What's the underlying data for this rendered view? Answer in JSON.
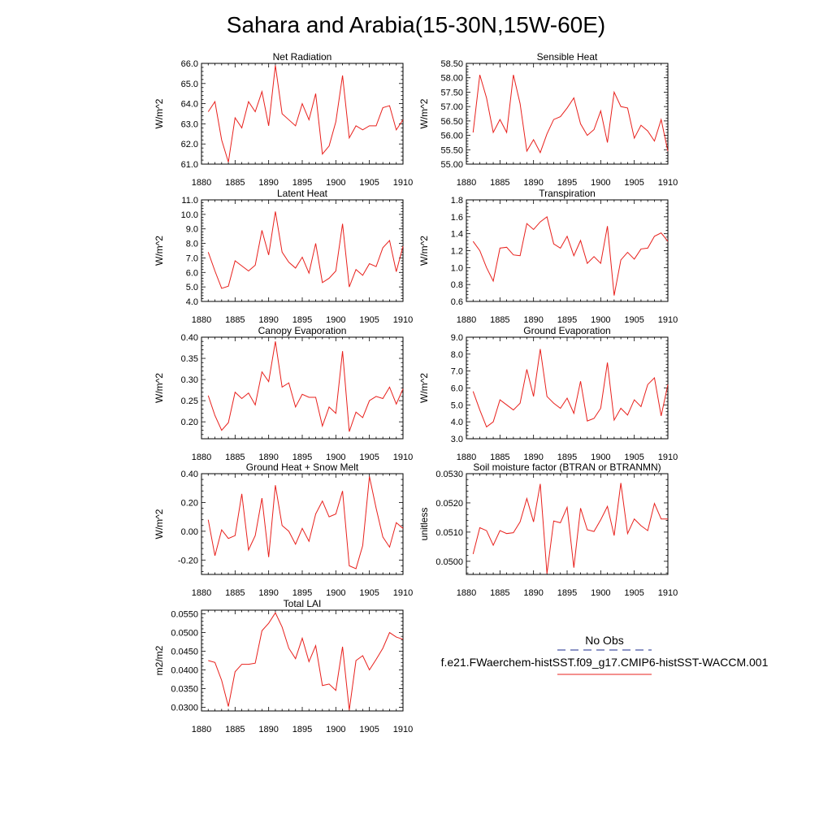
{
  "figure_title": "Sahara and Arabia(15-30N,15W-60E)",
  "legend": {
    "entries": [
      {
        "label": "No Obs",
        "color": "#1a2a8c",
        "dash": true
      },
      {
        "label": "f.e21.FWaerchem-histSST.f09_g17.CMIP6-histSST-WACCM.001",
        "color": "#e8201c",
        "dash": false
      }
    ]
  },
  "chart_data": [
    {
      "type": "line",
      "title": "Net Radiation",
      "ylabel": "W/m^2",
      "xlim": [
        1880,
        1910
      ],
      "ylim": [
        61.0,
        66.0
      ],
      "xticks": [
        1880,
        1885,
        1890,
        1895,
        1900,
        1905,
        1910
      ],
      "yticks": [
        61.0,
        62.0,
        63.0,
        64.0,
        65.0,
        66.0
      ],
      "ytick_labels": [
        "61.0",
        "62.0",
        "63.0",
        "64.0",
        "65.0",
        "66.0"
      ],
      "x": [
        1881,
        1882,
        1883,
        1884,
        1885,
        1886,
        1887,
        1888,
        1889,
        1890,
        1891,
        1892,
        1893,
        1894,
        1895,
        1896,
        1897,
        1898,
        1899,
        1900,
        1901,
        1902,
        1903,
        1904,
        1905,
        1906,
        1907,
        1908,
        1909,
        1910
      ],
      "series": [
        {
          "color": "#e8201c",
          "values": [
            63.6,
            64.1,
            62.2,
            61.1,
            63.3,
            62.8,
            64.1,
            63.6,
            64.6,
            62.9,
            65.9,
            63.5,
            63.2,
            62.9,
            64.0,
            63.2,
            64.5,
            61.5,
            61.9,
            63.1,
            65.4,
            62.3,
            62.9,
            62.7,
            62.9,
            62.9,
            63.8,
            63.9,
            62.7,
            63.2
          ]
        }
      ]
    },
    {
      "type": "line",
      "title": "Sensible Heat",
      "ylabel": "W/m^2",
      "xlim": [
        1880,
        1910
      ],
      "ylim": [
        55.0,
        58.5
      ],
      "xticks": [
        1880,
        1885,
        1890,
        1895,
        1900,
        1905,
        1910
      ],
      "yticks": [
        55.0,
        55.5,
        56.0,
        56.5,
        57.0,
        57.5,
        58.0,
        58.5
      ],
      "ytick_labels": [
        "55.00",
        "55.50",
        "56.00",
        "56.50",
        "57.00",
        "57.50",
        "58.00",
        "58.50"
      ],
      "x": [
        1881,
        1882,
        1883,
        1884,
        1885,
        1886,
        1887,
        1888,
        1889,
        1890,
        1891,
        1892,
        1893,
        1894,
        1895,
        1896,
        1897,
        1898,
        1899,
        1900,
        1901,
        1902,
        1903,
        1904,
        1905,
        1906,
        1907,
        1908,
        1909,
        1910
      ],
      "series": [
        {
          "color": "#e8201c",
          "values": [
            56.1,
            58.1,
            57.3,
            56.1,
            56.55,
            56.1,
            58.1,
            57.1,
            55.45,
            55.85,
            55.4,
            56.05,
            56.55,
            56.65,
            56.95,
            57.3,
            56.4,
            56.0,
            56.2,
            56.85,
            55.75,
            57.5,
            57.0,
            56.95,
            55.9,
            56.35,
            56.15,
            55.8,
            56.55,
            55.45
          ]
        }
      ]
    },
    {
      "type": "line",
      "title": "Latent Heat",
      "ylabel": "W/m^2",
      "xlim": [
        1880,
        1910
      ],
      "ylim": [
        4.0,
        11.0
      ],
      "xticks": [
        1880,
        1885,
        1890,
        1895,
        1900,
        1905,
        1910
      ],
      "yticks": [
        4.0,
        5.0,
        6.0,
        7.0,
        8.0,
        9.0,
        10.0,
        11.0
      ],
      "ytick_labels": [
        "4.0",
        "5.0",
        "6.0",
        "7.0",
        "8.0",
        "9.0",
        "10.0",
        "11.0"
      ],
      "x": [
        1881,
        1882,
        1883,
        1884,
        1885,
        1886,
        1887,
        1888,
        1889,
        1890,
        1891,
        1892,
        1893,
        1894,
        1895,
        1896,
        1897,
        1898,
        1899,
        1900,
        1901,
        1902,
        1903,
        1904,
        1905,
        1906,
        1907,
        1908,
        1909,
        1910
      ],
      "series": [
        {
          "color": "#e8201c",
          "values": [
            7.4,
            6.1,
            4.9,
            5.05,
            6.8,
            6.45,
            6.1,
            6.5,
            8.9,
            7.2,
            10.2,
            7.4,
            6.7,
            6.3,
            7.05,
            5.95,
            8.0,
            5.3,
            5.6,
            6.1,
            9.35,
            5.0,
            6.2,
            5.8,
            6.6,
            6.4,
            7.7,
            8.2,
            6.05,
            7.8
          ]
        }
      ]
    },
    {
      "type": "line",
      "title": "Transpiration",
      "ylabel": "W/m^2",
      "xlim": [
        1880,
        1910
      ],
      "ylim": [
        0.6,
        1.8
      ],
      "xticks": [
        1880,
        1885,
        1890,
        1895,
        1900,
        1905,
        1910
      ],
      "yticks": [
        0.6,
        0.8,
        1.0,
        1.2,
        1.4,
        1.6,
        1.8
      ],
      "ytick_labels": [
        "0.6",
        "0.8",
        "1.0",
        "1.2",
        "1.4",
        "1.6",
        "1.8"
      ],
      "x": [
        1881,
        1882,
        1883,
        1884,
        1885,
        1886,
        1887,
        1888,
        1889,
        1890,
        1891,
        1892,
        1893,
        1894,
        1895,
        1896,
        1897,
        1898,
        1899,
        1900,
        1901,
        1902,
        1903,
        1904,
        1905,
        1906,
        1907,
        1908,
        1909,
        1910
      ],
      "series": [
        {
          "color": "#e8201c",
          "values": [
            1.31,
            1.2,
            1.0,
            0.84,
            1.23,
            1.24,
            1.15,
            1.14,
            1.52,
            1.45,
            1.54,
            1.6,
            1.28,
            1.23,
            1.37,
            1.14,
            1.32,
            1.05,
            1.13,
            1.05,
            1.49,
            0.67,
            1.09,
            1.18,
            1.1,
            1.22,
            1.23,
            1.37,
            1.41,
            1.31
          ]
        }
      ]
    },
    {
      "type": "line",
      "title": "Canopy Evaporation",
      "ylabel": "W/m^2",
      "xlim": [
        1880,
        1910
      ],
      "ylim": [
        0.16,
        0.4
      ],
      "xticks": [
        1880,
        1885,
        1890,
        1895,
        1900,
        1905,
        1910
      ],
      "yticks": [
        0.2,
        0.25,
        0.3,
        0.35,
        0.4
      ],
      "ytick_labels": [
        "0.20",
        "0.25",
        "0.30",
        "0.35",
        "0.40"
      ],
      "x": [
        1881,
        1882,
        1883,
        1884,
        1885,
        1886,
        1887,
        1888,
        1889,
        1890,
        1891,
        1892,
        1893,
        1894,
        1895,
        1896,
        1897,
        1898,
        1899,
        1900,
        1901,
        1902,
        1903,
        1904,
        1905,
        1906,
        1907,
        1908,
        1909,
        1910
      ],
      "series": [
        {
          "color": "#e8201c",
          "values": [
            0.262,
            0.215,
            0.18,
            0.198,
            0.27,
            0.255,
            0.268,
            0.24,
            0.318,
            0.295,
            0.39,
            0.282,
            0.292,
            0.235,
            0.265,
            0.258,
            0.258,
            0.19,
            0.235,
            0.22,
            0.367,
            0.177,
            0.223,
            0.21,
            0.25,
            0.26,
            0.255,
            0.282,
            0.242,
            0.278
          ]
        }
      ]
    },
    {
      "type": "line",
      "title": "Ground Evaporation",
      "ylabel": "W/m^2",
      "xlim": [
        1880,
        1910
      ],
      "ylim": [
        3.0,
        9.0
      ],
      "xticks": [
        1880,
        1885,
        1890,
        1895,
        1900,
        1905,
        1910
      ],
      "yticks": [
        3.0,
        4.0,
        5.0,
        6.0,
        7.0,
        8.0,
        9.0
      ],
      "ytick_labels": [
        "3.0",
        "4.0",
        "5.0",
        "6.0",
        "7.0",
        "8.0",
        "9.0"
      ],
      "x": [
        1881,
        1882,
        1883,
        1884,
        1885,
        1886,
        1887,
        1888,
        1889,
        1890,
        1891,
        1892,
        1893,
        1894,
        1895,
        1896,
        1897,
        1898,
        1899,
        1900,
        1901,
        1902,
        1903,
        1904,
        1905,
        1906,
        1907,
        1908,
        1909,
        1910
      ],
      "series": [
        {
          "color": "#e8201c",
          "values": [
            5.8,
            4.7,
            3.7,
            4.0,
            5.3,
            5.0,
            4.7,
            5.1,
            7.1,
            5.5,
            8.3,
            5.5,
            5.1,
            4.8,
            5.4,
            4.5,
            6.4,
            4.05,
            4.2,
            4.8,
            7.5,
            4.1,
            4.8,
            4.4,
            5.3,
            4.9,
            6.2,
            6.6,
            4.35,
            6.2
          ]
        }
      ]
    },
    {
      "type": "line",
      "title": "Ground Heat + Snow Melt",
      "ylabel": "W/m^2",
      "xlim": [
        1880,
        1910
      ],
      "ylim": [
        -0.3,
        0.4
      ],
      "xticks": [
        1880,
        1885,
        1890,
        1895,
        1900,
        1905,
        1910
      ],
      "yticks": [
        -0.2,
        0.0,
        0.2,
        0.4
      ],
      "ytick_labels": [
        "-0.20",
        "0.00",
        "0.20",
        "0.40"
      ],
      "x": [
        1881,
        1882,
        1883,
        1884,
        1885,
        1886,
        1887,
        1888,
        1889,
        1890,
        1891,
        1892,
        1893,
        1894,
        1895,
        1896,
        1897,
        1898,
        1899,
        1900,
        1901,
        1902,
        1903,
        1904,
        1905,
        1906,
        1907,
        1908,
        1909,
        1910
      ],
      "series": [
        {
          "color": "#e8201c",
          "values": [
            0.08,
            -0.17,
            0.01,
            -0.05,
            -0.03,
            0.26,
            -0.13,
            -0.03,
            0.23,
            -0.18,
            0.32,
            0.04,
            0.0,
            -0.09,
            0.02,
            -0.07,
            0.12,
            0.21,
            0.1,
            0.12,
            0.28,
            -0.24,
            -0.26,
            -0.1,
            0.38,
            0.16,
            -0.04,
            -0.11,
            0.06,
            0.02
          ]
        }
      ]
    },
    {
      "type": "line",
      "title": "Soil moisture factor (BTRAN or BTRANMN)",
      "ylabel": "unitless",
      "xlim": [
        1880,
        1910
      ],
      "ylim": [
        0.04955,
        0.053
      ],
      "xticks": [
        1880,
        1885,
        1890,
        1895,
        1900,
        1905,
        1910
      ],
      "yticks": [
        0.05,
        0.051,
        0.052,
        0.053
      ],
      "ytick_labels": [
        "0.0500",
        "0.0510",
        "0.0520",
        "0.0530"
      ],
      "x": [
        1881,
        1882,
        1883,
        1884,
        1885,
        1886,
        1887,
        1888,
        1889,
        1890,
        1891,
        1892,
        1893,
        1894,
        1895,
        1896,
        1897,
        1898,
        1899,
        1900,
        1901,
        1902,
        1903,
        1904,
        1905,
        1906,
        1907,
        1908,
        1909,
        1910
      ],
      "series": [
        {
          "color": "#e8201c",
          "values": [
            0.05025,
            0.05115,
            0.05105,
            0.05055,
            0.05105,
            0.05095,
            0.05098,
            0.05135,
            0.05215,
            0.05135,
            0.05265,
            0.04958,
            0.05138,
            0.05132,
            0.05185,
            0.04978,
            0.05182,
            0.05108,
            0.05102,
            0.05142,
            0.05188,
            0.05088,
            0.05268,
            0.05095,
            0.05145,
            0.05122,
            0.05105,
            0.05198,
            0.05145,
            0.05145
          ]
        }
      ]
    },
    {
      "type": "line",
      "title": "Total LAI",
      "ylabel": "m2/m2",
      "xlim": [
        1880,
        1910
      ],
      "ylim": [
        0.029,
        0.056
      ],
      "xticks": [
        1880,
        1885,
        1890,
        1895,
        1900,
        1905,
        1910
      ],
      "yticks": [
        0.03,
        0.035,
        0.04,
        0.045,
        0.05,
        0.055
      ],
      "ytick_labels": [
        "0.0300",
        "0.0350",
        "0.0400",
        "0.0450",
        "0.0500",
        "0.0550"
      ],
      "x": [
        1881,
        1882,
        1883,
        1884,
        1885,
        1886,
        1887,
        1888,
        1889,
        1890,
        1891,
        1892,
        1893,
        1894,
        1895,
        1896,
        1897,
        1898,
        1899,
        1900,
        1901,
        1902,
        1903,
        1904,
        1905,
        1906,
        1907,
        1908,
        1909,
        1910
      ],
      "series": [
        {
          "color": "#e8201c",
          "values": [
            0.0425,
            0.042,
            0.0372,
            0.0302,
            0.0395,
            0.0415,
            0.0415,
            0.0418,
            0.0505,
            0.0525,
            0.0553,
            0.0515,
            0.0458,
            0.043,
            0.0485,
            0.0422,
            0.0465,
            0.0358,
            0.0362,
            0.0345,
            0.0462,
            0.0292,
            0.0425,
            0.0438,
            0.04,
            0.0428,
            0.0458,
            0.05,
            0.0488,
            0.0482
          ]
        }
      ]
    }
  ]
}
